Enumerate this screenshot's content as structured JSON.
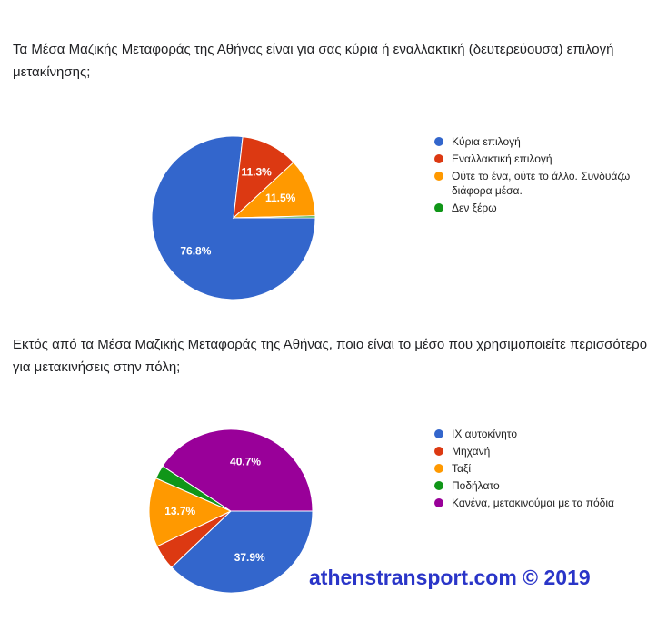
{
  "chart_data": [
    {
      "type": "pie",
      "title": "Τα Μέσα Μαζικής Μεταφοράς της Αθήνας είναι για σας κύρια ή εναλλακτική (δευτερεύουσα) επιλογή μετακίνησης;",
      "categories": [
        "Κύρια επιλογή",
        "Εναλλακτική επιλογή",
        "Ούτε το ένα, ούτε το άλλο. Συνδυάζω διάφορα μέσα.",
        "Δεν ξέρω"
      ],
      "values": [
        76.8,
        11.3,
        11.5,
        0.4
      ],
      "value_labels": [
        "76.8%",
        "11.3%",
        "11.5%",
        null
      ],
      "colors": [
        "#3366cc",
        "#dc3912",
        "#ff9900",
        "#109618"
      ]
    },
    {
      "type": "pie",
      "title": "Εκτός από τα Μέσα Μαζικής Μεταφοράς της Αθήνας, ποιο είναι το μέσο που χρησιμοποιείτε περισσότερο για μετακινήσεις στην πόλη;",
      "categories": [
        "IX αυτοκίνητο",
        "Μηχανή",
        "Ταξί",
        "Ποδήλατο",
        "Κανένα, μετακινούμαι με τα πόδια"
      ],
      "values": [
        37.9,
        5.0,
        13.7,
        2.7,
        40.7
      ],
      "value_labels": [
        "37.9%",
        null,
        "13.7%",
        null,
        "40.7%"
      ],
      "colors": [
        "#3366cc",
        "#dc3912",
        "#ff9900",
        "#109618",
        "#990099"
      ]
    }
  ],
  "watermark": "athenstransport.com © 2019"
}
